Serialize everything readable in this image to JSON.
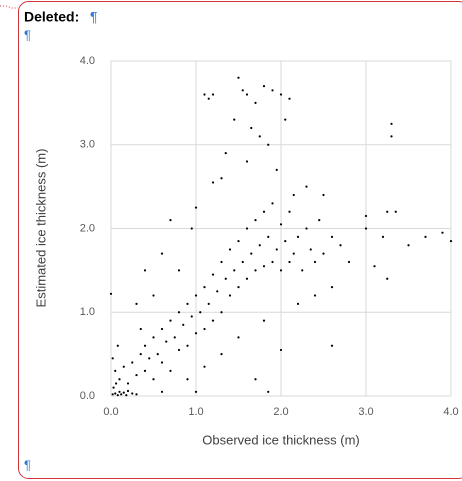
{
  "revision_label": "Deleted:",
  "paragraph_marks": [
    "¶",
    "¶",
    "¶"
  ],
  "chart_data": {
    "type": "scatter",
    "xlabel": "Observed ice thickness (m)",
    "ylabel": "Estimated ice thickness (m)",
    "color": "#000000",
    "grid": true,
    "xlim": [
      0,
      4
    ],
    "ylim": [
      0,
      4
    ],
    "xticks": [
      {
        "value": 0,
        "label": "0.0"
      },
      {
        "value": 1,
        "label": "1.0"
      },
      {
        "value": 2,
        "label": "2.0"
      },
      {
        "value": 3,
        "label": "3.0"
      },
      {
        "value": 4,
        "label": "4.0"
      }
    ],
    "yticks": [
      {
        "value": 0,
        "label": "0.0"
      },
      {
        "value": 1,
        "label": "1.0"
      },
      {
        "value": 2,
        "label": "2.0"
      },
      {
        "value": 3,
        "label": "3.0"
      },
      {
        "value": 4,
        "label": "4.0"
      }
    ],
    "x": [
      0.02,
      0.05,
      0.08,
      0.1,
      0.12,
      0.15,
      0.18,
      0.2,
      0.25,
      0.3,
      0.03,
      0.06,
      0.1,
      0.05,
      0.02,
      0,
      0.08,
      0.15,
      0.2,
      0.25,
      0.3,
      0.35,
      0.4,
      0.4,
      0.45,
      0.5,
      0.5,
      0.55,
      0.6,
      0.6,
      0.65,
      0.7,
      0.7,
      0.75,
      0.8,
      0.8,
      0.85,
      0.9,
      0.9,
      0.95,
      1.0,
      1.0,
      1.05,
      1.1,
      1.1,
      1.15,
      1.2,
      1.2,
      1.25,
      1.3,
      1.3,
      1.35,
      1.4,
      1.4,
      1.45,
      1.5,
      1.5,
      1.55,
      1.6,
      1.6,
      1.65,
      1.7,
      1.7,
      1.75,
      1.8,
      1.8,
      1.85,
      1.9,
      1.9,
      1.95,
      2.0,
      2.0,
      2.05,
      2.1,
      2.1,
      2.15,
      2.2,
      2.25,
      2.3,
      2.35,
      2.4,
      2.45,
      2.5,
      2.6,
      2.7,
      2.8,
      3.0,
      3.1,
      3.2,
      3.25,
      3.5,
      3.7,
      3.9,
      4.0,
      3.35,
      3.25,
      3.0,
      1.1,
      1.15,
      1.2,
      1.5,
      1.55,
      1.6,
      1.7,
      1.8,
      1.9,
      2.0,
      2.1,
      1.65,
      1.75,
      1.85,
      1.45,
      1.35,
      1.6,
      2.05,
      1.95,
      1.3,
      1.2,
      3.3,
      3.3,
      2.15,
      1.0,
      0.95,
      0.7,
      0.6,
      0.4,
      0.3,
      0.35,
      0.5,
      0.9,
      1.1,
      1.3,
      1.5,
      1.8,
      2.0,
      2.2,
      1.85,
      1.7,
      2.6,
      1.0,
      0.6,
      0.8,
      2.3,
      2.5,
      2.4,
      2.6
    ],
    "values": [
      0.02,
      0.03,
      0.01,
      0.05,
      0.02,
      0.04,
      0.01,
      0.06,
      0.03,
      0.02,
      0.1,
      0.15,
      0.2,
      0.3,
      0.45,
      1.22,
      0.6,
      0.35,
      0.15,
      0.4,
      0.25,
      0.5,
      0.3,
      0.6,
      0.45,
      0.2,
      0.7,
      0.5,
      0.4,
      0.8,
      0.65,
      0.3,
      0.9,
      0.7,
      0.55,
      1.0,
      0.85,
      0.6,
      1.1,
      0.95,
      0.75,
      1.2,
      1.0,
      0.8,
      1.3,
      1.1,
      0.9,
      1.45,
      1.25,
      1.0,
      1.6,
      1.4,
      1.2,
      1.75,
      1.5,
      1.3,
      1.85,
      1.6,
      1.4,
      2.0,
      1.7,
      1.5,
      2.1,
      1.8,
      1.55,
      2.2,
      1.9,
      1.6,
      2.3,
      1.75,
      1.5,
      2.05,
      1.85,
      1.6,
      2.2,
      1.7,
      1.9,
      1.5,
      2.0,
      1.75,
      1.6,
      2.1,
      1.7,
      1.9,
      1.8,
      1.6,
      2.0,
      1.55,
      1.9,
      1.4,
      1.8,
      1.9,
      1.95,
      1.85,
      2.2,
      2.2,
      2.15,
      3.6,
      3.55,
      3.6,
      3.8,
      3.65,
      3.6,
      3.5,
      3.7,
      3.65,
      3.6,
      3.55,
      3.2,
      3.1,
      3.0,
      3.3,
      2.9,
      2.8,
      3.3,
      2.7,
      2.6,
      2.55,
      3.25,
      3.1,
      2.4,
      2.25,
      2.0,
      2.1,
      1.7,
      1.5,
      1.1,
      0.8,
      1.2,
      0.2,
      0.35,
      0.5,
      0.7,
      0.9,
      0.55,
      1.1,
      0.05,
      0.2,
      0.6,
      0.05,
      0.05,
      1.5,
      2.5,
      2.4,
      1.2,
      1.3
    ]
  }
}
